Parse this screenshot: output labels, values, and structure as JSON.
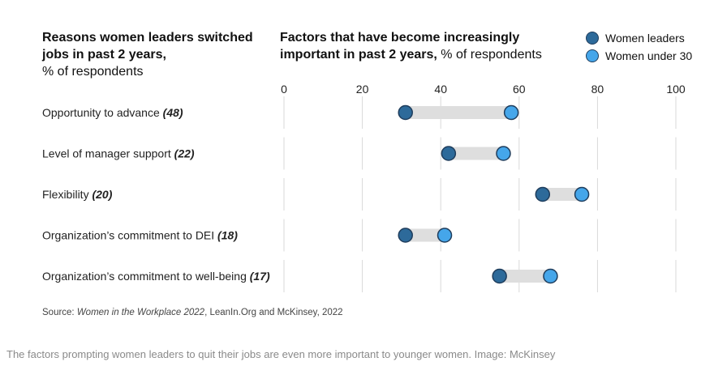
{
  "left_title": {
    "bold": "Reasons women leaders switched jobs in past 2 years,",
    "normal": "% of respondents"
  },
  "right_title": {
    "bold": "Factors that have become increasingly important in past 2 years,",
    "normal": " % of respondents"
  },
  "legend": [
    {
      "label": "Women leaders",
      "color": "#2d6a9a"
    },
    {
      "label": "Women under 30",
      "color": "#45a6ea"
    }
  ],
  "colors": {
    "connector": "#dedede",
    "grid": "#d9d9d9",
    "dot_outline": "#1f3d5c"
  },
  "chart_data": {
    "type": "dumbbell",
    "xlim": [
      0,
      100
    ],
    "xticks": [
      "0",
      "20",
      "40",
      "60",
      "80",
      "100"
    ],
    "tick_values": [
      0,
      20,
      40,
      60,
      80,
      100
    ],
    "categories": [
      {
        "label": "Opportunity to advance",
        "value_label": "(48)"
      },
      {
        "label": "Level of manager support",
        "value_label": "(22)"
      },
      {
        "label": "Flexibility",
        "value_label": "(20)"
      },
      {
        "label": "Organization’s commitment to DEI",
        "value_label": "(18)"
      },
      {
        "label": "Organization’s commitment to well-being",
        "value_label": "(17)"
      }
    ],
    "series": [
      {
        "name": "Women leaders",
        "values": [
          31,
          42,
          66,
          31,
          55
        ]
      },
      {
        "name": "Women under 30",
        "values": [
          58,
          56,
          76,
          41,
          68
        ]
      }
    ]
  },
  "source": {
    "prefix": "Source: ",
    "italic": "Women in the Workplace 2022",
    "suffix": ", LeanIn.Org and McKinsey, 2022"
  },
  "caption": "The factors prompting women leaders to quit their jobs are even more important to younger women. Image: McKinsey"
}
